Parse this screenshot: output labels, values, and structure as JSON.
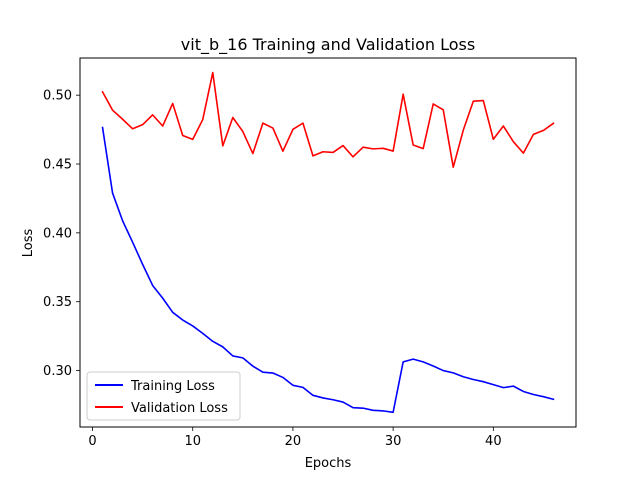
{
  "chart_data": {
    "type": "line",
    "title": "vit_b_16 Training and Validation Loss",
    "xlabel": "Epochs",
    "ylabel": "Loss",
    "xlim": [
      -1.25,
      48.25
    ],
    "ylim": [
      0.259,
      0.527
    ],
    "xticks": [
      0,
      10,
      20,
      30,
      40
    ],
    "xtick_labels": [
      "0",
      "10",
      "20",
      "30",
      "40"
    ],
    "yticks": [
      0.3,
      0.35,
      0.4,
      0.45,
      0.5
    ],
    "ytick_labels": [
      "0.30",
      "0.35",
      "0.40",
      "0.45",
      "0.50"
    ],
    "legend_position": "lower-left",
    "x": [
      1,
      2,
      3,
      4,
      5,
      6,
      7,
      8,
      9,
      10,
      11,
      12,
      13,
      14,
      15,
      16,
      17,
      18,
      19,
      20,
      21,
      22,
      23,
      24,
      25,
      26,
      27,
      28,
      29,
      30,
      31,
      32,
      33,
      34,
      35,
      36,
      37,
      38,
      39,
      40,
      41,
      42,
      43,
      44,
      45,
      46
    ],
    "series": [
      {
        "name": "Training Loss",
        "color": "#0000ff",
        "values": [
          0.4765,
          0.4289,
          0.4088,
          0.3932,
          0.3771,
          0.3618,
          0.3526,
          0.3423,
          0.3367,
          0.3324,
          0.327,
          0.3212,
          0.3172,
          0.3106,
          0.3092,
          0.3032,
          0.2988,
          0.2982,
          0.295,
          0.2893,
          0.2878,
          0.282,
          0.2801,
          0.2788,
          0.2771,
          0.273,
          0.2727,
          0.2711,
          0.2707,
          0.2697,
          0.3063,
          0.3083,
          0.3063,
          0.3033,
          0.3,
          0.2983,
          0.2955,
          0.2935,
          0.2919,
          0.2898,
          0.2876,
          0.2887,
          0.2848,
          0.2826,
          0.281,
          0.2791
        ]
      },
      {
        "name": "Validation Loss",
        "color": "#ff0000",
        "values": [
          0.5024,
          0.4891,
          0.4825,
          0.4756,
          0.4786,
          0.4857,
          0.4776,
          0.494,
          0.4707,
          0.4679,
          0.4823,
          0.5164,
          0.4632,
          0.4838,
          0.4736,
          0.4576,
          0.4797,
          0.4761,
          0.4593,
          0.4752,
          0.4797,
          0.4559,
          0.4589,
          0.4584,
          0.4634,
          0.4552,
          0.4622,
          0.461,
          0.4614,
          0.4594,
          0.5007,
          0.4638,
          0.4612,
          0.4936,
          0.4894,
          0.4477,
          0.4746,
          0.4956,
          0.4961,
          0.468,
          0.4776,
          0.4662,
          0.4579,
          0.4715,
          0.4744,
          0.4796
        ]
      }
    ]
  }
}
